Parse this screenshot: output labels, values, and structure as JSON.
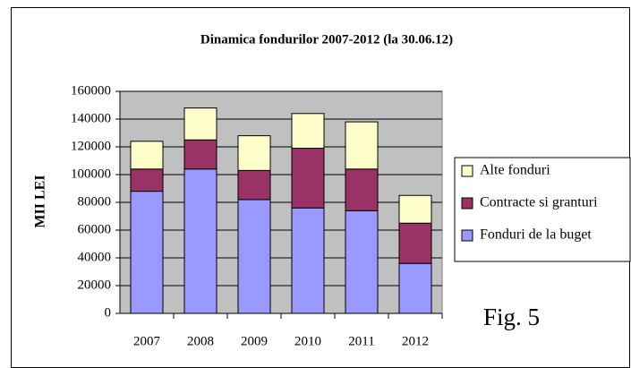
{
  "chart_data": {
    "type": "stacked_bar",
    "title": "Dinamica fondurilor 2007-2012  (la 30.06.12)",
    "y_label": "MII LEI",
    "annotation": "Fig. 5",
    "categories": [
      "2007",
      "2008",
      "2009",
      "2010",
      "2011",
      "2012"
    ],
    "series": [
      {
        "name": "Fonduri de la buget",
        "color": "#9999ff",
        "values": [
          88000,
          104000,
          82000,
          76000,
          74000,
          36000
        ]
      },
      {
        "name": "Contracte si granturi",
        "color": "#993366",
        "values": [
          16000,
          21000,
          21000,
          43000,
          30000,
          29000
        ]
      },
      {
        "name": "Alte fonduri",
        "color": "#ffffcc",
        "values": [
          20000,
          23000,
          25000,
          25000,
          34000,
          20000
        ]
      }
    ],
    "ylim": [
      0,
      160000
    ],
    "yticks": [
      0,
      20000,
      40000,
      60000,
      80000,
      100000,
      120000,
      140000,
      160000
    ],
    "grid": true,
    "legend": "right"
  }
}
